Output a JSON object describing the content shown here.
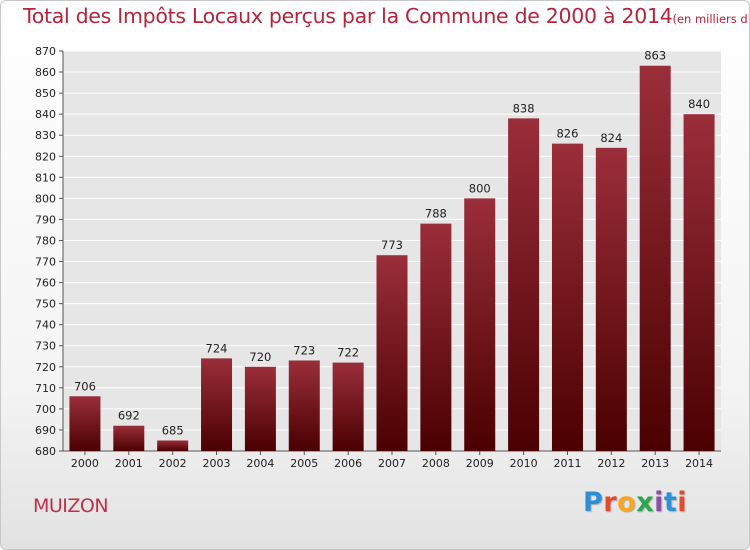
{
  "header": {
    "title": "Total des Impôts Locaux perçus par la Commune de 2000 à 2014",
    "unit": "(en milliers d'€)"
  },
  "footer": {
    "commune": "MUIZON",
    "brand": "Proxiti",
    "brand_colors": [
      "#2f8fd6",
      "#e8482b",
      "#f5a623",
      "#2aa84a",
      "#8b4ea0",
      "#2f8fd6",
      "#e8482b"
    ]
  },
  "colors": {
    "bar_top": "#9a2e3a",
    "bar_bottom": "#4a0000",
    "grid": "#ffffff",
    "plot_bg": "#e6e6e6",
    "title": "#b3243d"
  },
  "chart_data": {
    "type": "bar",
    "title": "Total des Impôts Locaux perçus par la Commune de 2000 à 2014",
    "xlabel": "",
    "ylabel": "",
    "categories": [
      "2000",
      "2001",
      "2002",
      "2003",
      "2004",
      "2005",
      "2006",
      "2007",
      "2008",
      "2009",
      "2010",
      "2011",
      "2012",
      "2013",
      "2014"
    ],
    "values": [
      706,
      692,
      685,
      724,
      720,
      723,
      722,
      773,
      788,
      800,
      838,
      826,
      824,
      863,
      840
    ],
    "ylim": [
      680,
      870
    ],
    "yticks": [
      680,
      690,
      700,
      710,
      720,
      730,
      740,
      750,
      760,
      770,
      780,
      790,
      800,
      810,
      820,
      830,
      840,
      850,
      860,
      870
    ],
    "grid": true
  }
}
